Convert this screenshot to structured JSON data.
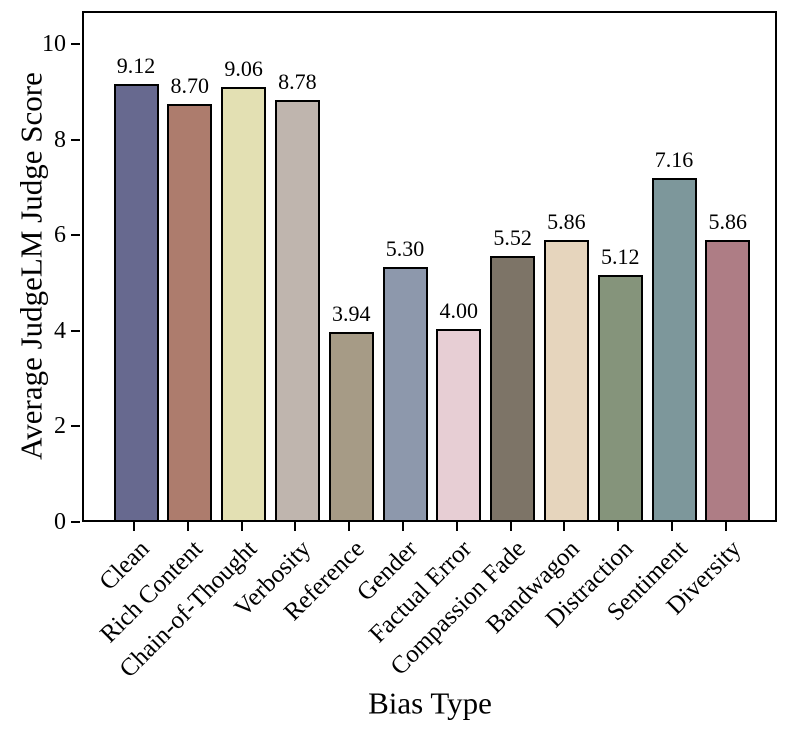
{
  "chart_data": {
    "type": "bar",
    "title": "",
    "xlabel": "Bias Type",
    "ylabel": "Average JudgeLM Judge Score",
    "categories": [
      "Clean",
      "Rich Content",
      "Chain-of-Thought",
      "Verbosity",
      "Reference",
      "Gender",
      "Factual Error",
      "Compassion Fade",
      "Bandwagon",
      "Distraction",
      "Sentiment",
      "Diversity"
    ],
    "values": [
      9.12,
      8.7,
      9.06,
      8.78,
      3.94,
      5.3,
      4.0,
      5.52,
      5.86,
      5.12,
      7.16,
      5.86
    ],
    "value_labels": [
      "9.12",
      "8.70",
      "9.06",
      "8.78",
      "3.94",
      "5.30",
      "4.00",
      "5.52",
      "5.86",
      "5.12",
      "7.16",
      "5.86"
    ],
    "bar_colors": [
      "#67698f",
      "#ad7c6d",
      "#e3e0b3",
      "#bfb5ae",
      "#a69b86",
      "#8d98ac",
      "#e7ced4",
      "#7d7467",
      "#e6d5bd",
      "#85947b",
      "#7d979b",
      "#ae7d85"
    ],
    "bar_edge_color": "#000000",
    "yticks": [
      "0",
      "2",
      "4",
      "6",
      "8",
      "10"
    ],
    "ytick_values": [
      0,
      2,
      4,
      6,
      8,
      10
    ],
    "ylim": [
      0,
      10.69
    ],
    "grid": false,
    "legend": null,
    "background_color": "#ffffff",
    "axis_color": "#000000"
  }
}
